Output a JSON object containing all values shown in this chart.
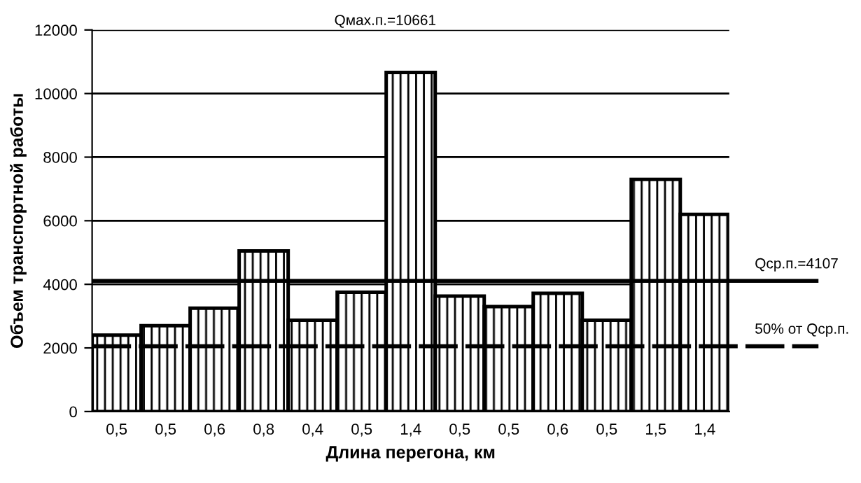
{
  "chart_data": {
    "type": "bar",
    "xlabel": "Длина перегона, км",
    "ylabel": "Объем транспортной работы",
    "categories": [
      "0,5",
      "0,5",
      "0,6",
      "0,8",
      "0,4",
      "0,5",
      "1,4",
      "0,5",
      "0,5",
      "0,6",
      "0,5",
      "1,5",
      "1,4"
    ],
    "values": [
      2400,
      2700,
      3250,
      5050,
      2870,
      3750,
      10661,
      3630,
      3300,
      3720,
      2870,
      7300,
      6200
    ],
    "color": "#000000",
    "ylim": [
      0,
      12000
    ],
    "yticks": [
      0,
      2000,
      4000,
      6000,
      8000,
      10000,
      12000
    ],
    "grid": "y",
    "ref_lines": [
      {
        "axis": "y",
        "value": 4107,
        "label": "Qср.п.=4107",
        "line_style": "solid"
      },
      {
        "axis": "y",
        "value": 2053.5,
        "label": "50% от Qср.п.",
        "line_style": "dashed"
      }
    ],
    "annotations": [
      "Qмах.п.=10661"
    ]
  }
}
